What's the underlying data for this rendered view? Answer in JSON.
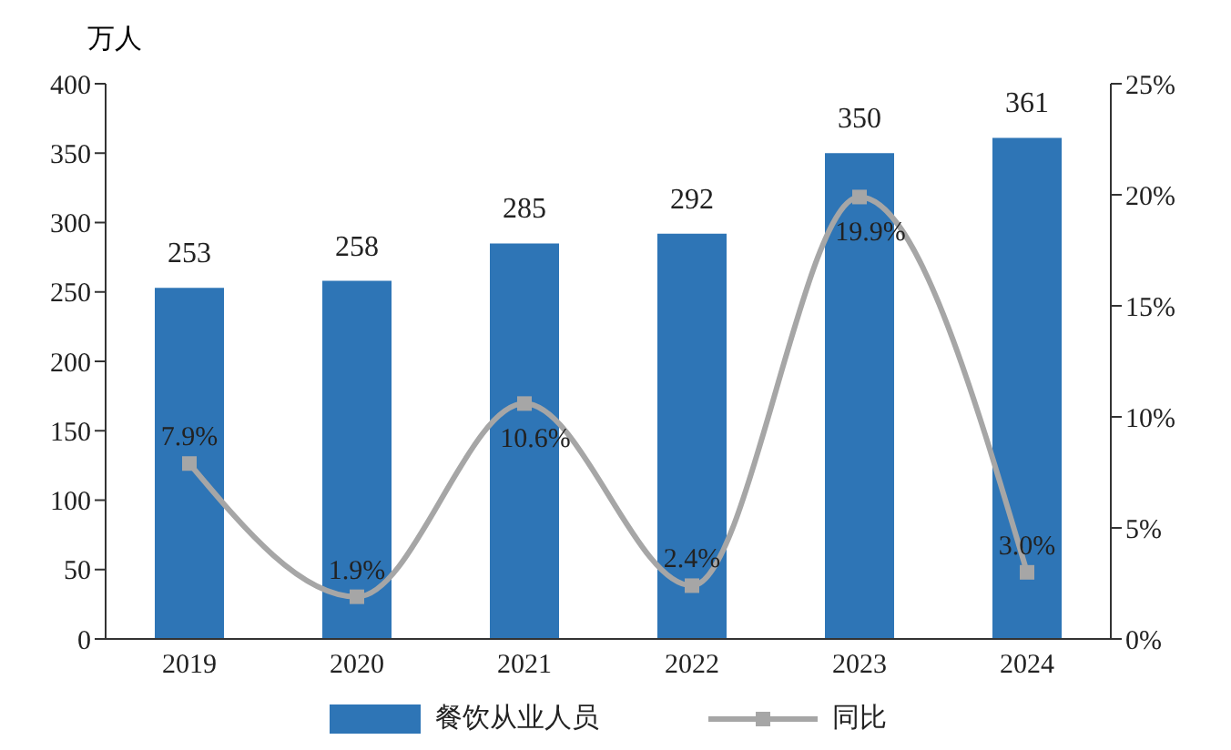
{
  "chart_data": {
    "type": "bar",
    "ylabel": "万人",
    "categories": [
      "2019",
      "2020",
      "2021",
      "2022",
      "2023",
      "2024"
    ],
    "series": [
      {
        "name": "餐饮从业人员",
        "color": "#2e75b6",
        "values": [
          253,
          258,
          285,
          292,
          350,
          361
        ]
      },
      {
        "name": "同比",
        "type": "line",
        "axis": "y2",
        "color": "#a6a6a6",
        "marker": "square",
        "values": [
          7.9,
          1.9,
          10.6,
          2.4,
          19.9,
          3.0
        ],
        "value_labels": [
          "7.9%",
          "1.9%",
          "10.6%",
          "2.4%",
          "19.9%",
          "3.0%"
        ]
      }
    ],
    "data_labels": true,
    "ylim": [
      0,
      400
    ],
    "yticks": [
      0,
      50,
      100,
      150,
      200,
      250,
      300,
      350,
      400
    ],
    "y2lim": [
      0,
      25
    ],
    "y2ticks": [
      {
        "value": 0,
        "label": "0%"
      },
      {
        "value": 5,
        "label": "5%"
      },
      {
        "value": 10,
        "label": "10%"
      },
      {
        "value": 15,
        "label": "15%"
      },
      {
        "value": 20,
        "label": "20%"
      },
      {
        "value": 25,
        "label": "25%"
      }
    ],
    "grid": false,
    "legend": "bottom"
  }
}
